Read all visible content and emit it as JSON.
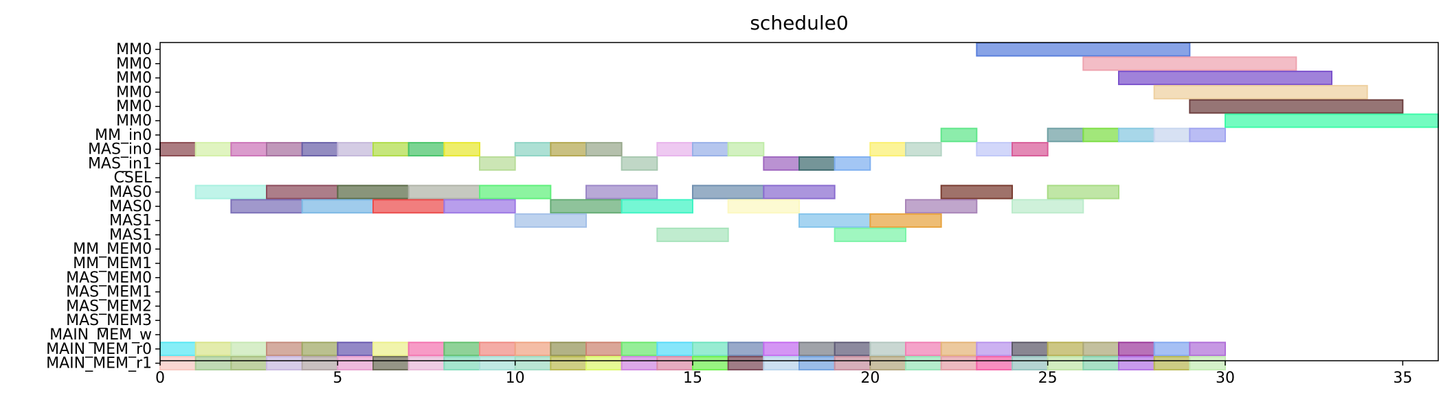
{
  "chart_data": {
    "type": "gantt",
    "title": "schedule0",
    "xlabel": "",
    "ylabel": "",
    "xlim": [
      0,
      36
    ],
    "xticks": [
      0,
      5,
      10,
      15,
      20,
      25,
      30,
      35
    ],
    "grid": false,
    "rows": [
      "MM0",
      "MM0",
      "MM0",
      "MM0",
      "MM0",
      "MM0",
      "MM_in0",
      "MAS_in0",
      "MAS_in1",
      "CSEL",
      "MAS0",
      "MAS0",
      "MAS1",
      "MAS1",
      "MM_MEM0",
      "MM_MEM1",
      "MAS_MEM0",
      "MAS_MEM1",
      "MAS_MEM2",
      "MAS_MEM3",
      "MAIN_MEM_w",
      "MAIN_MEM_r0",
      "MAIN_MEM_r1"
    ],
    "tasks": [
      {
        "row": 0,
        "start": 23,
        "end": 29,
        "color": "#5a7fdc"
      },
      {
        "row": 1,
        "start": 26,
        "end": 32,
        "color": "#eea4b0"
      },
      {
        "row": 2,
        "start": 27,
        "end": 33,
        "color": "#7b52cc"
      },
      {
        "row": 3,
        "start": 28,
        "end": 34,
        "color": "#eed0a0"
      },
      {
        "row": 4,
        "start": 29,
        "end": 35,
        "color": "#6e4040"
      },
      {
        "row": 5,
        "start": 30,
        "end": 36,
        "color": "#3dfba8"
      },
      {
        "row": 6,
        "start": 22,
        "end": 23,
        "color": "#60e68a"
      },
      {
        "row": 6,
        "start": 25,
        "end": 26,
        "color": "#6fa0a4"
      },
      {
        "row": 6,
        "start": 26,
        "end": 27,
        "color": "#7ede46"
      },
      {
        "row": 6,
        "start": 27,
        "end": 28,
        "color": "#86c8e0"
      },
      {
        "row": 6,
        "start": 28,
        "end": 29,
        "color": "#c7d6ef"
      },
      {
        "row": 6,
        "start": 29,
        "end": 30,
        "color": "#a0a4f0"
      },
      {
        "row": 7,
        "start": 0,
        "end": 1,
        "color": "#8a4a50"
      },
      {
        "row": 7,
        "start": 1,
        "end": 2,
        "color": "#d4f0a8"
      },
      {
        "row": 7,
        "start": 2,
        "end": 3,
        "color": "#cc74b8"
      },
      {
        "row": 7,
        "start": 3,
        "end": 4,
        "color": "#a870a0"
      },
      {
        "row": 7,
        "start": 4,
        "end": 5,
        "color": "#6a60a8"
      },
      {
        "row": 7,
        "start": 5,
        "end": 6,
        "color": "#c4b8da"
      },
      {
        "row": 7,
        "start": 6,
        "end": 7,
        "color": "#b0dc48"
      },
      {
        "row": 7,
        "start": 7,
        "end": 8,
        "color": "#48c46a"
      },
      {
        "row": 7,
        "start": 8,
        "end": 9,
        "color": "#e8e830"
      },
      {
        "row": 7,
        "start": 10,
        "end": 11,
        "color": "#8ed4c4"
      },
      {
        "row": 7,
        "start": 11,
        "end": 12,
        "color": "#b4a850"
      },
      {
        "row": 7,
        "start": 12,
        "end": 13,
        "color": "#98a88c"
      },
      {
        "row": 7,
        "start": 14,
        "end": 15,
        "color": "#e8b4ec"
      },
      {
        "row": 7,
        "start": 15,
        "end": 16,
        "color": "#98b0e8"
      },
      {
        "row": 7,
        "start": 16,
        "end": 17,
        "color": "#c0eca8"
      },
      {
        "row": 7,
        "start": 20,
        "end": 21,
        "color": "#fbf070"
      },
      {
        "row": 7,
        "start": 21,
        "end": 22,
        "color": "#b4d4c4"
      },
      {
        "row": 7,
        "start": 23,
        "end": 24,
        "color": "#c0c8f8"
      },
      {
        "row": 7,
        "start": 24,
        "end": 25,
        "color": "#d85c98"
      },
      {
        "row": 8,
        "start": 9,
        "end": 10,
        "color": "#b8dc98"
      },
      {
        "row": 8,
        "start": 13,
        "end": 14,
        "color": "#a8c8b0"
      },
      {
        "row": 8,
        "start": 17,
        "end": 18,
        "color": "#a068c0"
      },
      {
        "row": 8,
        "start": 18,
        "end": 19,
        "color": "#406c70"
      },
      {
        "row": 8,
        "start": 19,
        "end": 20,
        "color": "#80b0f0"
      },
      {
        "row": 10,
        "start": 1,
        "end": 3,
        "color": "#a8f0e0"
      },
      {
        "row": 10,
        "start": 3,
        "end": 5,
        "color": "#8c4c5c"
      },
      {
        "row": 10,
        "start": 5,
        "end": 7,
        "color": "#5c6c48"
      },
      {
        "row": 10,
        "start": 7,
        "end": 9,
        "color": "#b0b4a8"
      },
      {
        "row": 10,
        "start": 9,
        "end": 11,
        "color": "#60f07c"
      },
      {
        "row": 10,
        "start": 12,
        "end": 14,
        "color": "#9c88c8"
      },
      {
        "row": 10,
        "start": 15,
        "end": 17,
        "color": "#7090b0"
      },
      {
        "row": 10,
        "start": 17,
        "end": 19,
        "color": "#8a6cd0"
      },
      {
        "row": 10,
        "start": 22,
        "end": 24,
        "color": "#7a3c30"
      },
      {
        "row": 10,
        "start": 25,
        "end": 27,
        "color": "#a8dc84"
      },
      {
        "row": 11,
        "start": 2,
        "end": 4,
        "color": "#7c70b8"
      },
      {
        "row": 11,
        "start": 4,
        "end": 6,
        "color": "#7cb8e4"
      },
      {
        "row": 11,
        "start": 6,
        "end": 8,
        "color": "#ec4c4c"
      },
      {
        "row": 11,
        "start": 8,
        "end": 10,
        "color": "#9c78e4"
      },
      {
        "row": 11,
        "start": 11,
        "end": 13,
        "color": "#64ac74"
      },
      {
        "row": 11,
        "start": 13,
        "end": 15,
        "color": "#40f4c4"
      },
      {
        "row": 11,
        "start": 16,
        "end": 18,
        "color": "#fcf8c0"
      },
      {
        "row": 11,
        "start": 21,
        "end": 23,
        "color": "#a884b8"
      },
      {
        "row": 11,
        "start": 24,
        "end": 26,
        "color": "#bceccc"
      },
      {
        "row": 12,
        "start": 10,
        "end": 12,
        "color": "#a4c0e8"
      },
      {
        "row": 12,
        "start": 18,
        "end": 20,
        "color": "#84c4ec"
      },
      {
        "row": 12,
        "start": 20,
        "end": 22,
        "color": "#e8a440"
      },
      {
        "row": 13,
        "start": 14,
        "end": 16,
        "color": "#a8e4bc"
      },
      {
        "row": 13,
        "start": 19,
        "end": 21,
        "color": "#7cf4a8"
      },
      {
        "row": 21,
        "start": 0,
        "end": 1,
        "color": "#58e8f4"
      },
      {
        "row": 21,
        "start": 1,
        "end": 2,
        "color": "#d8e48c"
      },
      {
        "row": 21,
        "start": 2,
        "end": 3,
        "color": "#c8e8b4"
      },
      {
        "row": 21,
        "start": 3,
        "end": 4,
        "color": "#c48c7c"
      },
      {
        "row": 21,
        "start": 4,
        "end": 5,
        "color": "#a0a864"
      },
      {
        "row": 21,
        "start": 5,
        "end": 6,
        "color": "#6a5ab0"
      },
      {
        "row": 21,
        "start": 6,
        "end": 7,
        "color": "#ecf08c"
      },
      {
        "row": 21,
        "start": 7,
        "end": 8,
        "color": "#f474b0"
      },
      {
        "row": 21,
        "start": 8,
        "end": 9,
        "color": "#64c070"
      },
      {
        "row": 21,
        "start": 9,
        "end": 10,
        "color": "#f08c84"
      },
      {
        "row": 21,
        "start": 10,
        "end": 11,
        "color": "#f0a484"
      },
      {
        "row": 21,
        "start": 11,
        "end": 12,
        "color": "#949458"
      },
      {
        "row": 21,
        "start": 12,
        "end": 13,
        "color": "#cc8470"
      },
      {
        "row": 21,
        "start": 13,
        "end": 14,
        "color": "#6ce870"
      },
      {
        "row": 21,
        "start": 14,
        "end": 15,
        "color": "#58dcf8"
      },
      {
        "row": 21,
        "start": 15,
        "end": 16,
        "color": "#70e4c0"
      },
      {
        "row": 21,
        "start": 16,
        "end": 17,
        "color": "#7088b4"
      },
      {
        "row": 21,
        "start": 17,
        "end": 18,
        "color": "#c46cf0"
      },
      {
        "row": 21,
        "start": 18,
        "end": 19,
        "color": "#7c8088"
      },
      {
        "row": 21,
        "start": 19,
        "end": 20,
        "color": "#605c78"
      },
      {
        "row": 21,
        "start": 20,
        "end": 21,
        "color": "#b4c8c0"
      },
      {
        "row": 21,
        "start": 21,
        "end": 22,
        "color": "#f080b4"
      },
      {
        "row": 21,
        "start": 22,
        "end": 23,
        "color": "#e4b478"
      },
      {
        "row": 21,
        "start": 23,
        "end": 24,
        "color": "#b894ec"
      },
      {
        "row": 21,
        "start": 24,
        "end": 25,
        "color": "#5c5868"
      },
      {
        "row": 21,
        "start": 25,
        "end": 26,
        "color": "#b8b054"
      },
      {
        "row": 21,
        "start": 26,
        "end": 27,
        "color": "#aca878"
      },
      {
        "row": 21,
        "start": 27,
        "end": 28,
        "color": "#9c3c9c"
      },
      {
        "row": 21,
        "start": 28,
        "end": 29,
        "color": "#84a8f0"
      },
      {
        "row": 21,
        "start": 29,
        "end": 30,
        "color": "#b070d8"
      },
      {
        "row": 22,
        "start": 0,
        "end": 1,
        "color": "#f8c8c0"
      },
      {
        "row": 22,
        "start": 1,
        "end": 2,
        "color": "#a8cc98"
      },
      {
        "row": 22,
        "start": 2,
        "end": 3,
        "color": "#a8c080"
      },
      {
        "row": 22,
        "start": 3,
        "end": 4,
        "color": "#c8b8e0"
      },
      {
        "row": 22,
        "start": 4,
        "end": 5,
        "color": "#b4a8a8"
      },
      {
        "row": 22,
        "start": 5,
        "end": 6,
        "color": "#e8a0d0"
      },
      {
        "row": 22,
        "start": 6,
        "end": 7,
        "color": "#6c6c58"
      },
      {
        "row": 22,
        "start": 7,
        "end": 8,
        "color": "#e8b8d8"
      },
      {
        "row": 22,
        "start": 8,
        "end": 9,
        "color": "#84dcbc"
      },
      {
        "row": 22,
        "start": 9,
        "end": 10,
        "color": "#a8e0d8"
      },
      {
        "row": 22,
        "start": 10,
        "end": 11,
        "color": "#a0dcc4"
      },
      {
        "row": 22,
        "start": 11,
        "end": 12,
        "color": "#bcbc54"
      },
      {
        "row": 22,
        "start": 12,
        "end": 13,
        "color": "#dcf86c"
      },
      {
        "row": 22,
        "start": 13,
        "end": 14,
        "color": "#d088e0"
      },
      {
        "row": 22,
        "start": 14,
        "end": 15,
        "color": "#dc8ca8"
      },
      {
        "row": 22,
        "start": 15,
        "end": 16,
        "color": "#70f050"
      },
      {
        "row": 22,
        "start": 16,
        "end": 17,
        "color": "#7c4a58"
      },
      {
        "row": 22,
        "start": 17,
        "end": 18,
        "color": "#b8d4ec"
      },
      {
        "row": 22,
        "start": 18,
        "end": 19,
        "color": "#74a4e0"
      },
      {
        "row": 22,
        "start": 19,
        "end": 20,
        "color": "#c890a0"
      },
      {
        "row": 22,
        "start": 20,
        "end": 21,
        "color": "#b4a880"
      },
      {
        "row": 22,
        "start": 21,
        "end": 22,
        "color": "#98e4b8"
      },
      {
        "row": 22,
        "start": 22,
        "end": 23,
        "color": "#e4a0a8"
      },
      {
        "row": 22,
        "start": 23,
        "end": 24,
        "color": "#f464a8"
      },
      {
        "row": 22,
        "start": 24,
        "end": 25,
        "color": "#98c4c0"
      },
      {
        "row": 22,
        "start": 25,
        "end": 26,
        "color": "#c0e4a8"
      },
      {
        "row": 22,
        "start": 26,
        "end": 27,
        "color": "#88d4b0"
      },
      {
        "row": 22,
        "start": 27,
        "end": 28,
        "color": "#b474e4"
      },
      {
        "row": 22,
        "start": 28,
        "end": 29,
        "color": "#b8b854"
      },
      {
        "row": 22,
        "start": 29,
        "end": 30,
        "color": "#c4ecb4"
      }
    ]
  }
}
